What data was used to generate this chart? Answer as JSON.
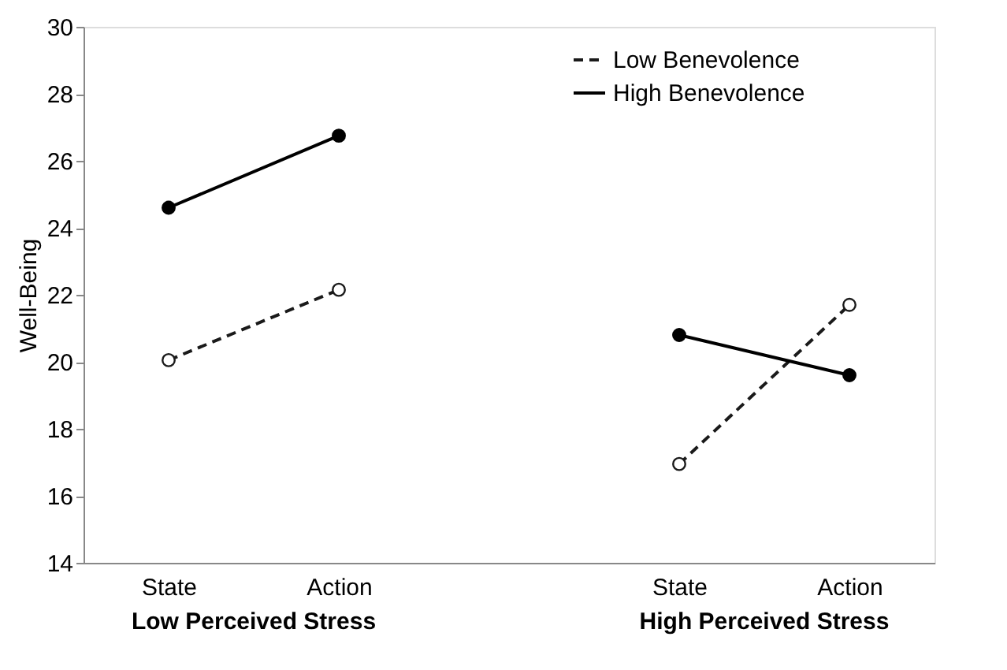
{
  "chart_data": {
    "type": "line",
    "ylabel": "Well-Being",
    "categories": [
      "State",
      "Action",
      null,
      "State",
      "Action"
    ],
    "series": [
      {
        "name": "Low Benevolence",
        "color": "#1a1a1a",
        "values": [
          20.05,
          22.15,
          null,
          16.95,
          21.7
        ],
        "line_style": "dashed"
      },
      {
        "name": "High Benevolence",
        "color": "#000000",
        "values": [
          24.6,
          26.75,
          null,
          20.8,
          19.6
        ],
        "line_style": "solid"
      }
    ],
    "ylim": [
      14,
      30
    ],
    "yticks": [
      14,
      16,
      18,
      20,
      22,
      24,
      26,
      28,
      30
    ],
    "marker": "circle",
    "grid": false,
    "legend": "top right",
    "annotations": [
      "Low Perceived Stress",
      "High Perceived Stress"
    ]
  }
}
